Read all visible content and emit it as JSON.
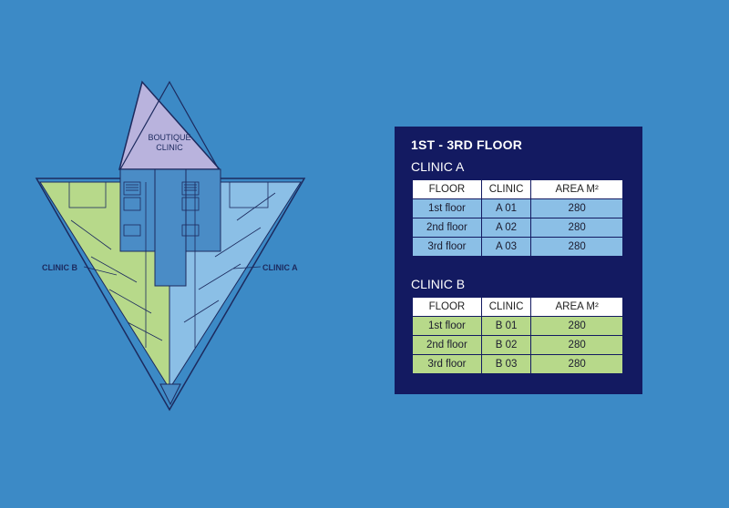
{
  "plan": {
    "boutique_label_1": "BOUTIQUE",
    "boutique_label_2": "CLINIC",
    "clinic_b_label": "CLINIC B",
    "clinic_a_label": "CLINIC A"
  },
  "panel": {
    "title": "1ST - 3RD FLOOR",
    "clinic_a": {
      "title": "CLINIC A",
      "headers": [
        "FLOOR",
        "CLINIC",
        "AREA M²"
      ],
      "rows": [
        [
          "1st floor",
          "A 01",
          "280"
        ],
        [
          "2nd floor",
          "A 02",
          "280"
        ],
        [
          "3rd floor",
          "A 03",
          "280"
        ]
      ]
    },
    "clinic_b": {
      "title": "CLINIC B",
      "headers": [
        "FLOOR",
        "CLINIC",
        "AREA M²"
      ],
      "rows": [
        [
          "1st floor",
          "B 01",
          "280"
        ],
        [
          "2nd floor",
          "B 02",
          "280"
        ],
        [
          "3rd floor",
          "B 03",
          "280"
        ]
      ]
    }
  },
  "colors": {
    "background": "#3c8ac6",
    "panel": "#131a61",
    "clinic_a": "#8bbfe6",
    "clinic_b": "#b7d98a",
    "boutique": "#b9b3dd"
  }
}
